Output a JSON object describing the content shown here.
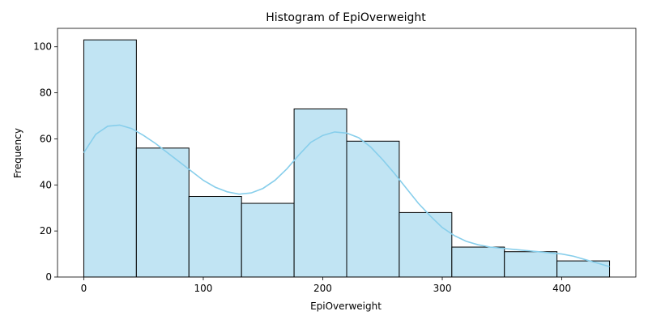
{
  "chart_data": {
    "type": "bar",
    "title": "Histogram of EpiOverweight",
    "xlabel": "EpiOverweight",
    "ylabel": "Frequency",
    "xlim": [
      -22,
      462
    ],
    "ylim": [
      0,
      108
    ],
    "x_ticks": [
      0,
      100,
      200,
      300,
      400
    ],
    "y_ticks": [
      0,
      20,
      40,
      60,
      80,
      100
    ],
    "bin_edges": [
      0,
      44,
      88,
      132,
      176,
      220,
      264,
      308,
      352,
      396,
      440
    ],
    "values": [
      103,
      56,
      35,
      32,
      73,
      59,
      28,
      13,
      11,
      7
    ],
    "kde": {
      "x": [
        0,
        10,
        20,
        30,
        40,
        50,
        60,
        70,
        80,
        90,
        100,
        110,
        120,
        130,
        140,
        150,
        160,
        170,
        180,
        190,
        200,
        210,
        220,
        230,
        240,
        250,
        260,
        270,
        280,
        290,
        300,
        310,
        320,
        330,
        340,
        350,
        360,
        370,
        380,
        390,
        400,
        410,
        420,
        430,
        440
      ],
      "y": [
        54,
        62,
        65.5,
        66,
        64.5,
        61.5,
        58,
        54,
        50,
        46,
        42,
        39,
        37,
        36,
        36.5,
        38.5,
        42,
        47,
        53,
        58.5,
        61.5,
        63,
        62.5,
        60.5,
        56.5,
        51,
        45,
        38.5,
        32,
        26.5,
        21.5,
        18,
        15.5,
        14,
        13,
        12.5,
        12,
        11.5,
        11,
        10.5,
        10,
        9,
        7.5,
        6,
        4.5
      ]
    },
    "grid": false,
    "colors": {
      "bar_fill": "#c1e4f3",
      "bar_edge": "#000000",
      "kde_line": "#87ceeb",
      "axes": "#000000"
    }
  }
}
